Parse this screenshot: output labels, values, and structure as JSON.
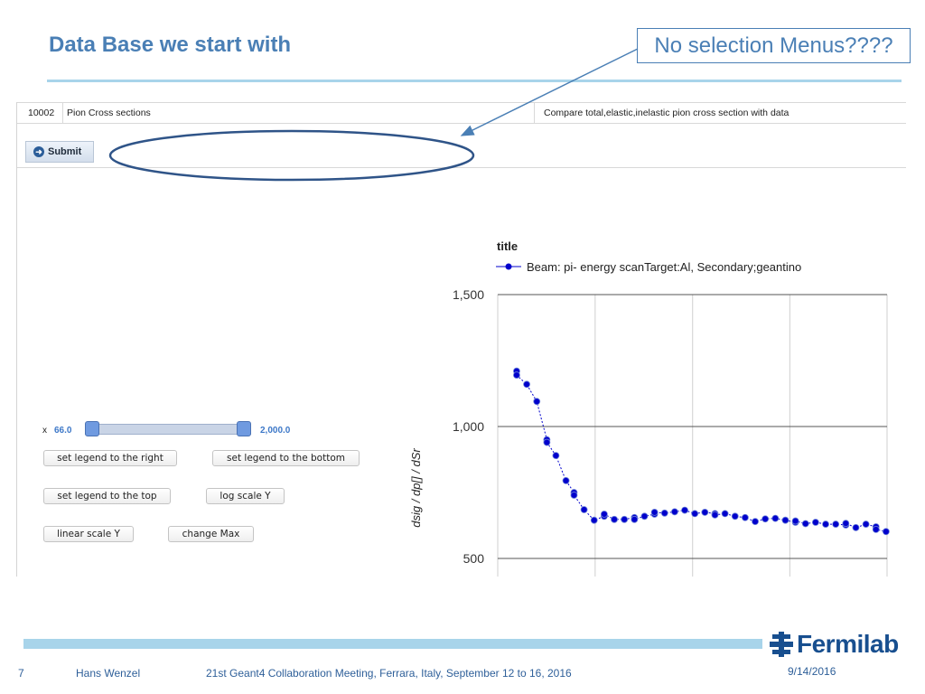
{
  "slide": {
    "title": "Data Base we start with",
    "callout": "No selection Menus????"
  },
  "table": {
    "id": "10002",
    "name": "Pion Cross sections",
    "description": "Compare total,elastic,inelastic pion cross section with data"
  },
  "form": {
    "submit_label": "Submit"
  },
  "controls": {
    "x_label": "x",
    "slider_min": "66.0",
    "slider_max": "2,000.0",
    "slider_low_fraction": 0.0,
    "slider_high_fraction": 1.0,
    "buttons": {
      "legend_right": "set legend to the right",
      "legend_bottom": "set legend to the bottom",
      "legend_top": "set legend to the top",
      "log_scale": "log scale Y",
      "linear_scale": "linear scale Y",
      "change_max": "change Max"
    }
  },
  "chart_data": {
    "type": "line",
    "title": "title",
    "ylabel": "dsig / dp[] / dSr",
    "xlabel": "",
    "grid": true,
    "legend_position": "top",
    "ylim": [
      370,
      1500
    ],
    "xlim": [
      66,
      2000
    ],
    "yticks": [
      "1,500",
      "1,000",
      "500"
    ],
    "ytick_values": [
      1500,
      1000,
      500
    ],
    "xgrid_values": [
      66,
      550,
      1034,
      1517,
      2000
    ],
    "series": [
      {
        "name": "Beam: pi- energy scanTarget:Al, Secondary;geantino",
        "color": "#0000cc",
        "x": [
          160,
          160,
          210,
          260,
          310,
          310,
          355,
          405,
          445,
          445,
          495,
          545,
          595,
          595,
          645,
          695,
          745,
          745,
          795,
          845,
          845,
          895,
          945,
          995,
          1045,
          1095,
          1145,
          1145,
          1195,
          1245,
          1295,
          1345,
          1395,
          1445,
          1495,
          1545,
          1545,
          1595,
          1645,
          1695,
          1745,
          1795,
          1795,
          1845,
          1895,
          1945,
          1945,
          1995
        ],
        "y": [
          1210,
          1195,
          1160,
          1095,
          950,
          940,
          890,
          795,
          750,
          740,
          685,
          645,
          660,
          668,
          648,
          648,
          655,
          648,
          660,
          668,
          675,
          672,
          677,
          683,
          670,
          675,
          670,
          665,
          670,
          660,
          655,
          640,
          650,
          652,
          645,
          637,
          642,
          632,
          637,
          630,
          630,
          627,
          633,
          617,
          630,
          620,
          610,
          602
        ]
      }
    ]
  },
  "footer": {
    "page": "7",
    "author": "Hans Wenzel",
    "event": "21st Geant4 Collaboration Meeting, Ferrara, Italy, September 12 to 16, 2016",
    "date": "9/14/2016",
    "brand": "Fermilab"
  },
  "colors": {
    "title_blue": "#4a7fb5",
    "rule_blue": "#a8d4ea",
    "series_blue": "#0000cc",
    "brand_blue": "#184f8f"
  }
}
